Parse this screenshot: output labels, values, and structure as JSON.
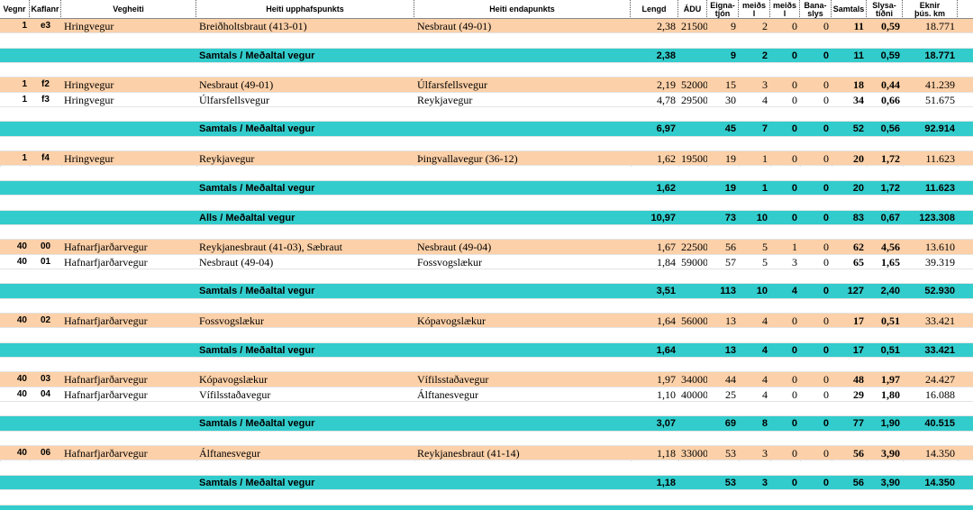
{
  "table": {
    "header": [
      "Vegnr",
      "Kaflanr",
      "Vegheiti",
      "Heiti upphafspunkts",
      "Heiti endapunkts",
      "Lengd",
      "ÁDU",
      "Eigna-\ntjón",
      "meiðs\nl",
      "meiðs\nl",
      "Bana-\nslys",
      "Samtals",
      "Slysa-\ntíðni",
      "Eknir\nþús. km"
    ],
    "groups": [
      {
        "rows": [
          [
            "1",
            "e3",
            "Hringvegur",
            "Breiðholtsbraut (413-01)",
            "Nesbraut (49-01)",
            "2,38",
            "21500",
            "9",
            "2",
            "0",
            "0",
            "11",
            "0,59",
            "18.771"
          ]
        ],
        "total": {
          "label": "Samtals / Meðaltal vegur",
          "values": [
            "2,38",
            "9",
            "2",
            "0",
            "0",
            "11",
            "0,59",
            "18.771"
          ]
        }
      },
      {
        "rows": [
          [
            "1",
            "f2",
            "Hringvegur",
            "Nesbraut (49-01)",
            "Úlfarsfellsvegur",
            "2,19",
            "52000",
            "15",
            "3",
            "0",
            "0",
            "18",
            "0,44",
            "41.239"
          ],
          [
            "1",
            "f3",
            "Hringvegur",
            "Úlfarsfellsvegur",
            "Reykjavegur",
            "4,78",
            "29500",
            "30",
            "4",
            "0",
            "0",
            "34",
            "0,66",
            "51.675"
          ]
        ],
        "total": {
          "label": "Samtals / Meðaltal vegur",
          "values": [
            "6,97",
            "45",
            "7",
            "0",
            "0",
            "52",
            "0,56",
            "92.914"
          ]
        }
      },
      {
        "rows": [
          [
            "1",
            "f4",
            "Hringvegur",
            "Reykjavegur",
            "Þingvallavegur (36-12)",
            "1,62",
            "19500",
            "19",
            "1",
            "0",
            "0",
            "20",
            "1,72",
            "11.623"
          ]
        ],
        "total": {
          "label": "Samtals / Meðaltal vegur",
          "values": [
            "1,62",
            "19",
            "1",
            "0",
            "0",
            "20",
            "1,72",
            "11.623"
          ]
        }
      },
      {
        "rows": [],
        "total": {
          "label": "Alls / Meðaltal vegur",
          "values": [
            "10,97",
            "73",
            "10",
            "0",
            "0",
            "83",
            "0,67",
            "123.308"
          ]
        }
      },
      {
        "rows": [
          [
            "40",
            "00",
            "Hafnarfjarðarvegur",
            "Reykjanesbraut (41-03), Sæbraut",
            "Nesbraut (49-04)",
            "1,67",
            "22500",
            "56",
            "5",
            "1",
            "0",
            "62",
            "4,56",
            "13.610"
          ],
          [
            "40",
            "01",
            "Hafnarfjarðarvegur",
            "Nesbraut (49-04)",
            "Fossvogslækur",
            "1,84",
            "59000",
            "57",
            "5",
            "3",
            "0",
            "65",
            "1,65",
            "39.319"
          ]
        ],
        "total": {
          "label": "Samtals / Meðaltal vegur",
          "values": [
            "3,51",
            "113",
            "10",
            "4",
            "0",
            "127",
            "2,40",
            "52.930"
          ]
        }
      },
      {
        "rows": [
          [
            "40",
            "02",
            "Hafnarfjarðarvegur",
            "Fossvogslækur",
            "Kópavogslækur",
            "1,64",
            "56000",
            "13",
            "4",
            "0",
            "0",
            "17",
            "0,51",
            "33.421"
          ]
        ],
        "total": {
          "label": "Samtals / Meðaltal vegur",
          "values": [
            "1,64",
            "13",
            "4",
            "0",
            "0",
            "17",
            "0,51",
            "33.421"
          ]
        }
      },
      {
        "rows": [
          [
            "40",
            "03",
            "Hafnarfjarðarvegur",
            "Kópavogslækur",
            "Vífilsstaðavegur",
            "1,97",
            "34000",
            "44",
            "4",
            "0",
            "0",
            "48",
            "1,97",
            "24.427"
          ],
          [
            "40",
            "04",
            "Hafnarfjarðarvegur",
            "Vífilsstaðavegur",
            "Álftanesvegur",
            "1,10",
            "40000",
            "25",
            "4",
            "0",
            "0",
            "29",
            "1,80",
            "16.088"
          ]
        ],
        "total": {
          "label": "Samtals / Meðaltal vegur",
          "values": [
            "3,07",
            "69",
            "8",
            "0",
            "0",
            "77",
            "1,90",
            "40.515"
          ]
        }
      },
      {
        "rows": [
          [
            "40",
            "06",
            "Hafnarfjarðarvegur",
            "Álftanesvegur",
            "Reykjanesbraut (41-14)",
            "1,18",
            "33000",
            "53",
            "3",
            "0",
            "0",
            "56",
            "3,90",
            "14.350"
          ]
        ],
        "total": {
          "label": "Samtals / Meðaltal vegur",
          "values": [
            "1,18",
            "53",
            "3",
            "0",
            "0",
            "56",
            "3,90",
            "14.350"
          ]
        }
      }
    ]
  }
}
